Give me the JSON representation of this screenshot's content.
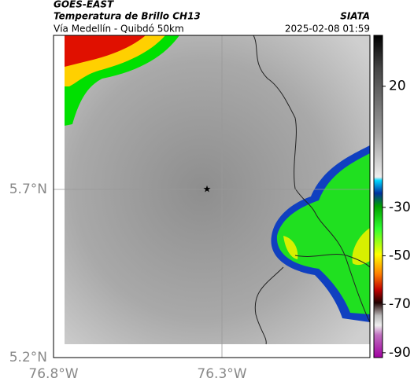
{
  "header": {
    "title": "GOES-EAST",
    "subtitle": "Temperatura de Brillo CH13",
    "route": "Vía Medellín - Quibdó 50km",
    "source": "SIATA",
    "timestamp": "2025-02-08 01:59"
  },
  "axes": {
    "y_labels": [
      "5.7°N",
      "5.2°N"
    ],
    "x_labels": [
      "76.8°W",
      "76.3°W"
    ]
  },
  "colorbar": {
    "range": [
      -92,
      41
    ],
    "ticks": [
      20,
      -30,
      -50,
      -70,
      -90
    ]
  }
}
